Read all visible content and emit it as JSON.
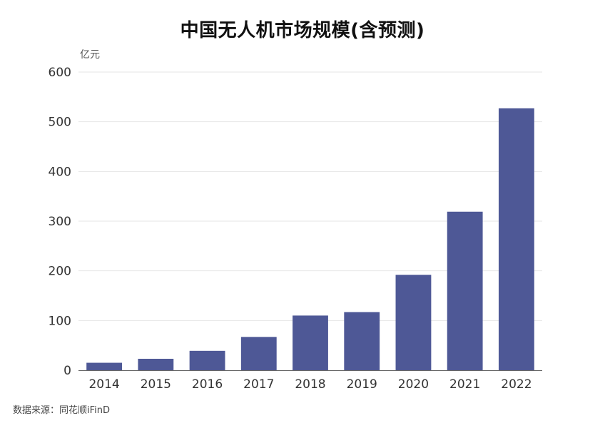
{
  "chart_data": {
    "type": "bar",
    "title": "中国无人机市场规模(含预测)",
    "ylabel": "亿元",
    "xlabel": "",
    "categories": [
      "2014",
      "2015",
      "2016",
      "2017",
      "2018",
      "2019",
      "2020",
      "2021",
      "2022"
    ],
    "values": [
      15,
      23,
      39,
      67,
      110,
      117,
      192,
      319,
      527
    ],
    "ylim": [
      0,
      600
    ],
    "yticks": [
      0,
      100,
      200,
      300,
      400,
      500,
      600
    ],
    "grid": true,
    "bar_color": "#4e5896",
    "legend": "none"
  },
  "footer": {
    "source": "数据来源：同花顺iFinD"
  }
}
